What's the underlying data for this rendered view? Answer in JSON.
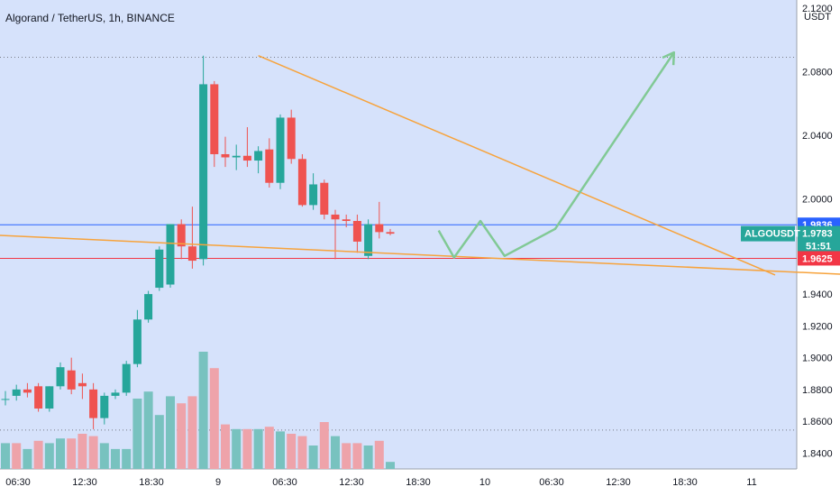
{
  "chart_data": {
    "type": "candlestick",
    "title": "Algorand / TetherUS, 1h, BINANCE",
    "currency_label": "USDT",
    "symbol_label": "ALGOUSDT",
    "countdown": "51:51",
    "y_range": [
      1.83,
      2.125
    ],
    "y_ticks": [
      "2.1200",
      "2.0800",
      "2.0400",
      "2.0000",
      "1.9400",
      "1.9200",
      "1.9000",
      "1.8800",
      "1.8600",
      "1.8400"
    ],
    "x_ticks": [
      "06:30",
      "12:30",
      "18:30",
      "9",
      "06:30",
      "12:30",
      "18:30",
      "10",
      "06:30",
      "12:30",
      "18:30",
      "11"
    ],
    "price_badges": [
      {
        "label": "1.9836",
        "value": 1.9836,
        "color": "#2962ff"
      },
      {
        "label": "1.9783",
        "value": 1.9783,
        "color": "#26a69a"
      },
      {
        "label": "1.9625",
        "value": 1.9625,
        "color": "#f23645"
      }
    ],
    "hlines": [
      {
        "value": 2.089,
        "color": "#787b86",
        "style": "dotted"
      },
      {
        "value": 1.9836,
        "color": "#2962ff",
        "style": "solid"
      },
      {
        "value": 1.9625,
        "color": "#f23645",
        "style": "solid"
      },
      {
        "value": 1.8545,
        "color": "#787b86",
        "style": "dotted"
      }
    ],
    "candles": [
      {
        "o": 1.874,
        "h": 1.879,
        "l": 1.87,
        "c": 1.874
      },
      {
        "o": 1.876,
        "h": 1.883,
        "l": 1.873,
        "c": 1.88
      },
      {
        "o": 1.88,
        "h": 1.884,
        "l": 1.875,
        "c": 1.878
      },
      {
        "o": 1.882,
        "h": 1.884,
        "l": 1.866,
        "c": 1.868
      },
      {
        "o": 1.868,
        "h": 1.882,
        "l": 1.866,
        "c": 1.882
      },
      {
        "o": 1.882,
        "h": 1.897,
        "l": 1.88,
        "c": 1.894
      },
      {
        "o": 1.892,
        "h": 1.9,
        "l": 1.877,
        "c": 1.88
      },
      {
        "o": 1.884,
        "h": 1.89,
        "l": 1.874,
        "c": 1.882
      },
      {
        "o": 1.88,
        "h": 1.884,
        "l": 1.855,
        "c": 1.862
      },
      {
        "o": 1.862,
        "h": 1.878,
        "l": 1.858,
        "c": 1.876
      },
      {
        "o": 1.876,
        "h": 1.88,
        "l": 1.874,
        "c": 1.878
      },
      {
        "o": 1.878,
        "h": 1.898,
        "l": 1.876,
        "c": 1.896
      },
      {
        "o": 1.896,
        "h": 1.93,
        "l": 1.894,
        "c": 1.924
      },
      {
        "o": 1.924,
        "h": 1.942,
        "l": 1.922,
        "c": 1.94
      },
      {
        "o": 1.944,
        "h": 1.97,
        "l": 1.942,
        "c": 1.968
      },
      {
        "o": 1.946,
        "h": 1.984,
        "l": 1.944,
        "c": 1.984
      },
      {
        "o": 1.984,
        "h": 1.987,
        "l": 1.962,
        "c": 1.97
      },
      {
        "o": 1.97,
        "h": 1.995,
        "l": 1.956,
        "c": 1.961
      },
      {
        "o": 1.962,
        "h": 2.09,
        "l": 1.958,
        "c": 2.072
      },
      {
        "o": 2.072,
        "h": 2.074,
        "l": 2.02,
        "c": 2.028
      },
      {
        "o": 2.028,
        "h": 2.039,
        "l": 2.02,
        "c": 2.026
      },
      {
        "o": 2.026,
        "h": 2.034,
        "l": 2.018,
        "c": 2.027
      },
      {
        "o": 2.027,
        "h": 2.045,
        "l": 2.02,
        "c": 2.024
      },
      {
        "o": 2.024,
        "h": 2.033,
        "l": 2.016,
        "c": 2.03
      },
      {
        "o": 2.031,
        "h": 2.038,
        "l": 2.007,
        "c": 2.01
      },
      {
        "o": 2.01,
        "h": 2.053,
        "l": 2.006,
        "c": 2.051
      },
      {
        "o": 2.051,
        "h": 2.056,
        "l": 2.022,
        "c": 2.025
      },
      {
        "o": 2.025,
        "h": 2.028,
        "l": 1.995,
        "c": 1.996
      },
      {
        "o": 1.996,
        "h": 2.016,
        "l": 1.993,
        "c": 2.009
      },
      {
        "o": 2.01,
        "h": 2.012,
        "l": 1.987,
        "c": 1.99
      },
      {
        "o": 1.99,
        "h": 1.993,
        "l": 1.962,
        "c": 1.987
      },
      {
        "o": 1.987,
        "h": 1.99,
        "l": 1.982,
        "c": 1.986
      },
      {
        "o": 1.986,
        "h": 1.99,
        "l": 1.966,
        "c": 1.973
      },
      {
        "o": 1.964,
        "h": 1.987,
        "l": 1.962,
        "c": 1.984
      },
      {
        "o": 1.984,
        "h": 1.998,
        "l": 1.975,
        "c": 1.979
      },
      {
        "o": 1.979,
        "h": 1.981,
        "l": 1.977,
        "c": 1.978
      }
    ],
    "volumes": [
      {
        "v": 0.22,
        "up": true
      },
      {
        "v": 0.22,
        "up": false
      },
      {
        "v": 0.17,
        "up": true
      },
      {
        "v": 0.24,
        "up": false
      },
      {
        "v": 0.22,
        "up": true
      },
      {
        "v": 0.26,
        "up": true
      },
      {
        "v": 0.26,
        "up": false
      },
      {
        "v": 0.3,
        "up": false
      },
      {
        "v": 0.28,
        "up": false
      },
      {
        "v": 0.22,
        "up": true
      },
      {
        "v": 0.17,
        "up": true
      },
      {
        "v": 0.17,
        "up": true
      },
      {
        "v": 0.6,
        "up": true
      },
      {
        "v": 0.66,
        "up": true
      },
      {
        "v": 0.46,
        "up": true
      },
      {
        "v": 0.62,
        "up": true
      },
      {
        "v": 0.56,
        "up": false
      },
      {
        "v": 0.62,
        "up": false
      },
      {
        "v": 1.0,
        "up": true
      },
      {
        "v": 0.86,
        "up": false
      },
      {
        "v": 0.38,
        "up": false
      },
      {
        "v": 0.34,
        "up": true
      },
      {
        "v": 0.34,
        "up": false
      },
      {
        "v": 0.34,
        "up": true
      },
      {
        "v": 0.36,
        "up": false
      },
      {
        "v": 0.32,
        "up": true
      },
      {
        "v": 0.3,
        "up": false
      },
      {
        "v": 0.28,
        "up": false
      },
      {
        "v": 0.2,
        "up": true
      },
      {
        "v": 0.4,
        "up": false
      },
      {
        "v": 0.28,
        "up": true
      },
      {
        "v": 0.22,
        "up": false
      },
      {
        "v": 0.22,
        "up": false
      },
      {
        "v": 0.2,
        "up": true
      },
      {
        "v": 0.24,
        "up": false
      },
      {
        "v": 0.06,
        "up": true
      }
    ],
    "trendlines": [
      {
        "name": "upper-trendline",
        "color": "#f7a33c",
        "points": [
          [
            23,
            2.09
          ],
          [
            70,
            1.952
          ]
        ]
      },
      {
        "name": "lower-trendline",
        "color": "#f7a33c",
        "points": [
          [
            -10,
            1.98
          ],
          [
            90,
            1.948
          ]
        ]
      }
    ],
    "projection": {
      "color": "#81c995",
      "points": [
        [
          39.4,
          1.98
        ],
        [
          40.8,
          1.963
        ],
        [
          43.2,
          1.986
        ],
        [
          45.4,
          1.964
        ],
        [
          50,
          1.981
        ],
        [
          60.8,
          2.092
        ]
      ]
    },
    "colors": {
      "up": "#26a69a",
      "down": "#ef5350",
      "vol_up": "#78c2bf",
      "vol_down": "#eea3aa",
      "background": "#d6e2fb",
      "axis_bg": "#ffffff"
    }
  }
}
